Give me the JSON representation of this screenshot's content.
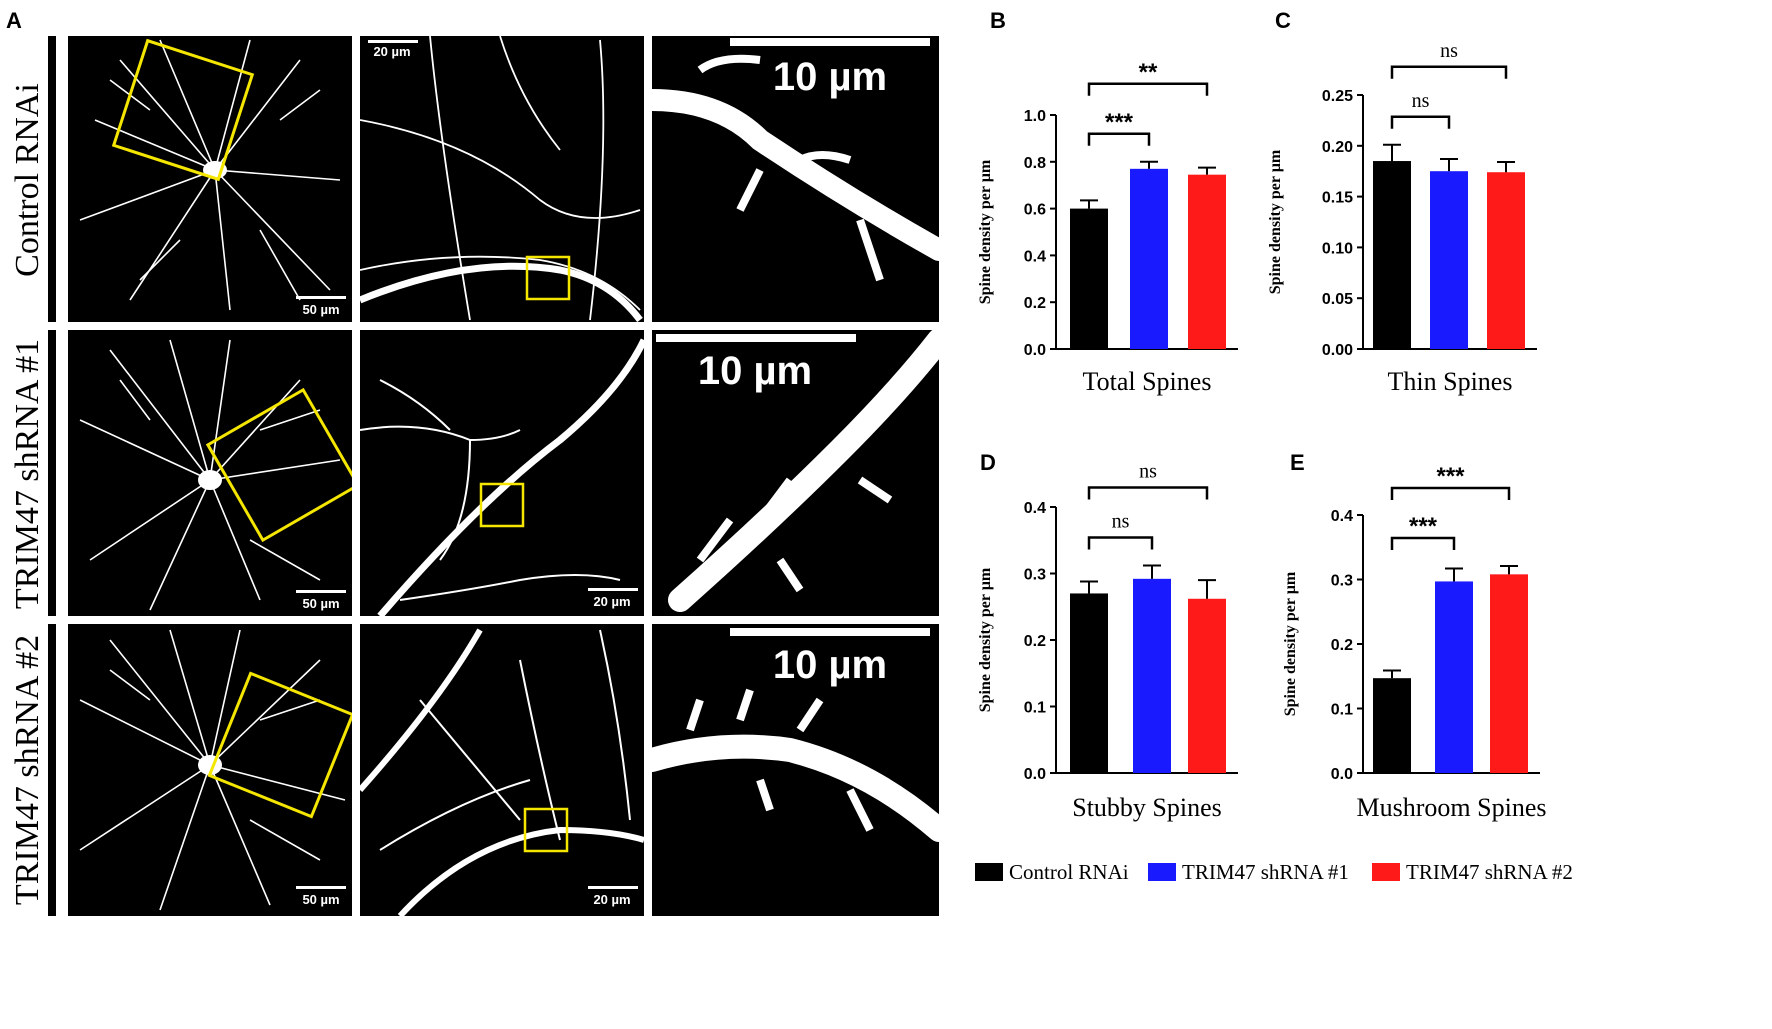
{
  "figure": {
    "panel_a_letter": "A",
    "row_labels": [
      "Control RNAi",
      "TRIM47 shRNA #1",
      "TRIM47 shRNA #2"
    ],
    "scale_bars": {
      "overview": "50 µm",
      "medium": "20 µm",
      "zoom": "10 µm"
    }
  },
  "colors": {
    "control": "#000000",
    "shrna1": "#1a1aff",
    "shrna2": "#ff1a1a",
    "roi": "#f5e600"
  },
  "legend": {
    "items": [
      {
        "label": "Control RNAi",
        "color": "#000000"
      },
      {
        "label": "TRIM47 shRNA #1",
        "color": "#1a1aff"
      },
      {
        "label": "TRIM47 shRNA #2",
        "color": "#ff1a1a"
      }
    ]
  },
  "chart_data": [
    {
      "panel": "B",
      "type": "bar",
      "categories": [
        "Control RNAi",
        "TRIM47 shRNA #1",
        "TRIM47 shRNA #2"
      ],
      "values": [
        0.6,
        0.77,
        0.745
      ],
      "errors": [
        0.035,
        0.03,
        0.03
      ],
      "xlabel": "Total Spines",
      "ylabel": "Spine density per µm",
      "ylim": [
        0,
        1.0
      ],
      "yticks": [
        0.0,
        0.2,
        0.4,
        0.6,
        0.8,
        1.0
      ],
      "ytick_labels": [
        "0.0",
        "0.2",
        "0.4",
        "0.6",
        "0.8",
        "1.0"
      ],
      "significance": [
        {
          "from": 0,
          "to": 1,
          "label": "***"
        },
        {
          "from": 0,
          "to": 2,
          "label": "**"
        }
      ]
    },
    {
      "panel": "C",
      "type": "bar",
      "categories": [
        "Control RNAi",
        "TRIM47 shRNA #1",
        "TRIM47 shRNA #2"
      ],
      "values": [
        0.185,
        0.175,
        0.174
      ],
      "errors": [
        0.016,
        0.012,
        0.01
      ],
      "xlabel": "Thin Spines",
      "ylabel": "Spine density per µm",
      "ylim": [
        0,
        0.25
      ],
      "yticks": [
        0.0,
        0.05,
        0.1,
        0.15,
        0.2,
        0.25
      ],
      "ytick_labels": [
        "0.00",
        "0.05",
        "0.10",
        "0.15",
        "0.20",
        "0.25"
      ],
      "significance": [
        {
          "from": 0,
          "to": 1,
          "label": "ns"
        },
        {
          "from": 0,
          "to": 2,
          "label": "ns"
        }
      ]
    },
    {
      "panel": "D",
      "type": "bar",
      "categories": [
        "Control RNAi",
        "TRIM47 shRNA #1",
        "TRIM47 shRNA #2"
      ],
      "values": [
        0.27,
        0.292,
        0.262
      ],
      "errors": [
        0.018,
        0.02,
        0.028
      ],
      "xlabel": "Stubby Spines",
      "ylabel": "Spine density per µm",
      "ylim": [
        0,
        0.4
      ],
      "yticks": [
        0.0,
        0.1,
        0.2,
        0.3,
        0.4
      ],
      "ytick_labels": [
        "0.0",
        "0.1",
        "0.2",
        "0.3",
        "0.4"
      ],
      "significance": [
        {
          "from": 0,
          "to": 1,
          "label": "ns"
        },
        {
          "from": 0,
          "to": 2,
          "label": "ns"
        }
      ]
    },
    {
      "panel": "E",
      "type": "bar",
      "categories": [
        "Control RNAi",
        "TRIM47 shRNA #1",
        "TRIM47 shRNA #2"
      ],
      "values": [
        0.147,
        0.297,
        0.308
      ],
      "errors": [
        0.012,
        0.02,
        0.013
      ],
      "xlabel": "Mushroom Spines",
      "ylabel": "Spine density per µm",
      "ylim": [
        0,
        0.4
      ],
      "yticks": [
        0.0,
        0.1,
        0.2,
        0.3,
        0.4
      ],
      "ytick_labels": [
        "0.0",
        "0.1",
        "0.2",
        "0.3",
        "0.4"
      ],
      "significance": [
        {
          "from": 0,
          "to": 1,
          "label": "***"
        },
        {
          "from": 0,
          "to": 2,
          "label": "***"
        }
      ]
    }
  ]
}
